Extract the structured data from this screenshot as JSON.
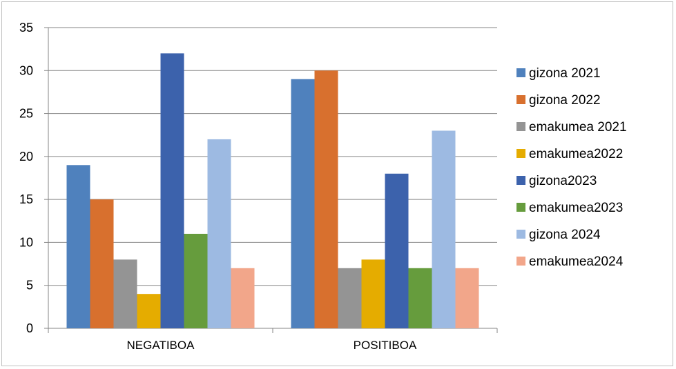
{
  "chart_data": {
    "type": "bar",
    "categories": [
      "NEGATIBOA",
      "POSITIBOA"
    ],
    "series": [
      {
        "name": "gizona 2021",
        "color": "#4F81BD",
        "values": [
          19,
          29
        ]
      },
      {
        "name": "gizona 2022",
        "color": "#D8702E",
        "values": [
          15,
          30
        ]
      },
      {
        "name": "emakumea 2021",
        "color": "#949494",
        "values": [
          8,
          7
        ]
      },
      {
        "name": "emakumea2022",
        "color": "#E5AC00",
        "values": [
          4,
          8
        ]
      },
      {
        "name": "gizona2023",
        "color": "#3C62AC",
        "values": [
          32,
          18
        ]
      },
      {
        "name": "emakumea2023",
        "color": "#669C3D",
        "values": [
          11,
          7
        ]
      },
      {
        "name": "gizona 2024",
        "color": "#9DBAE2",
        "values": [
          22,
          23
        ]
      },
      {
        "name": "emakumea2024",
        "color": "#F2A68A",
        "values": [
          7,
          7
        ]
      }
    ],
    "yticks": [
      0,
      5,
      10,
      15,
      20,
      25,
      30,
      35
    ],
    "ylim": [
      0,
      35
    ],
    "grid": true,
    "legend_position": "right",
    "title": "",
    "xlabel": "",
    "ylabel": ""
  }
}
